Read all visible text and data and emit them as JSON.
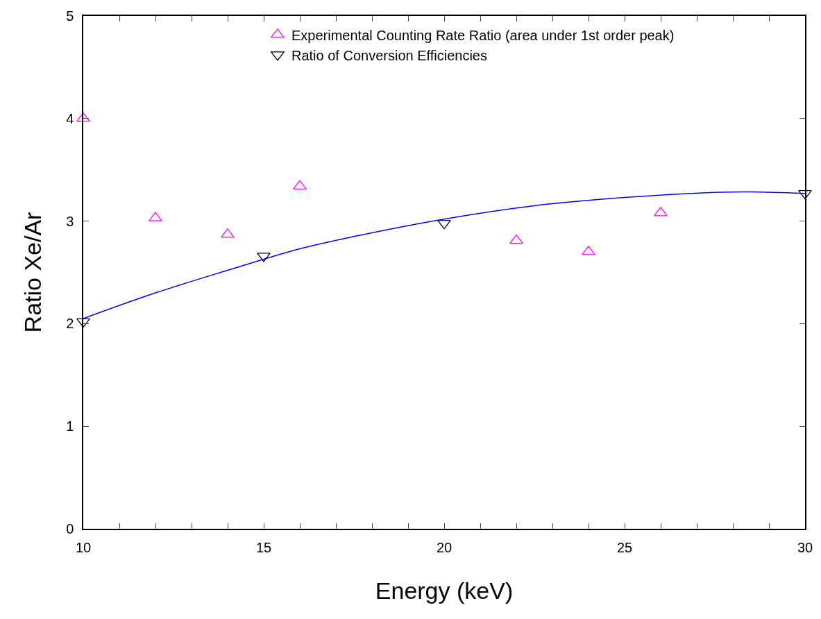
{
  "chart_data": {
    "type": "scatter",
    "xlabel": "Energy (keV)",
    "ylabel": "Ratio Xe/Ar",
    "xlim": [
      10,
      30
    ],
    "ylim": [
      0,
      5
    ],
    "xticks": [
      10,
      {
        "value": 11,
        "label": null
      },
      {
        "value": 12,
        "label": null
      },
      {
        "value": 13,
        "label": null
      },
      {
        "value": 14,
        "label": null
      },
      15,
      {
        "value": 16,
        "label": null
      },
      {
        "value": 17,
        "label": null
      },
      {
        "value": 18,
        "label": null
      },
      {
        "value": 19,
        "label": null
      },
      20,
      {
        "value": 21,
        "label": null
      },
      {
        "value": 22,
        "label": null
      },
      {
        "value": 23,
        "label": null
      },
      {
        "value": 24,
        "label": null
      },
      25,
      {
        "value": 26,
        "label": null
      },
      {
        "value": 27,
        "label": null
      },
      {
        "value": 28,
        "label": null
      },
      {
        "value": 29,
        "label": null
      },
      30
    ],
    "yticks": [
      0,
      1,
      2,
      3,
      4,
      5
    ],
    "legend": "top",
    "series": [
      {
        "name": "Experimental Counting Rate Ratio (area under 1st order peak)",
        "color": "#ff00ff",
        "marker": "triangle-up",
        "x": [
          10,
          12,
          14,
          16,
          22,
          24,
          26
        ],
        "values": [
          4.0,
          3.03,
          2.87,
          3.34,
          2.81,
          2.7,
          3.08
        ]
      },
      {
        "name": "Ratio of Conversion Efficiencies",
        "color": "#000000",
        "marker": "triangle-down",
        "x": [
          10,
          15,
          20,
          30
        ],
        "values": [
          2.02,
          2.66,
          2.98,
          3.27
        ]
      },
      {
        "type": "line",
        "color": "#0000ff",
        "x": [
          10,
          12,
          14,
          16,
          17.5,
          20,
          22.5,
          25,
          27.5,
          28.5,
          30
        ],
        "values": [
          2.05,
          2.3,
          2.52,
          2.73,
          2.85,
          3.02,
          3.15,
          3.23,
          3.28,
          3.285,
          3.27
        ]
      }
    ]
  }
}
